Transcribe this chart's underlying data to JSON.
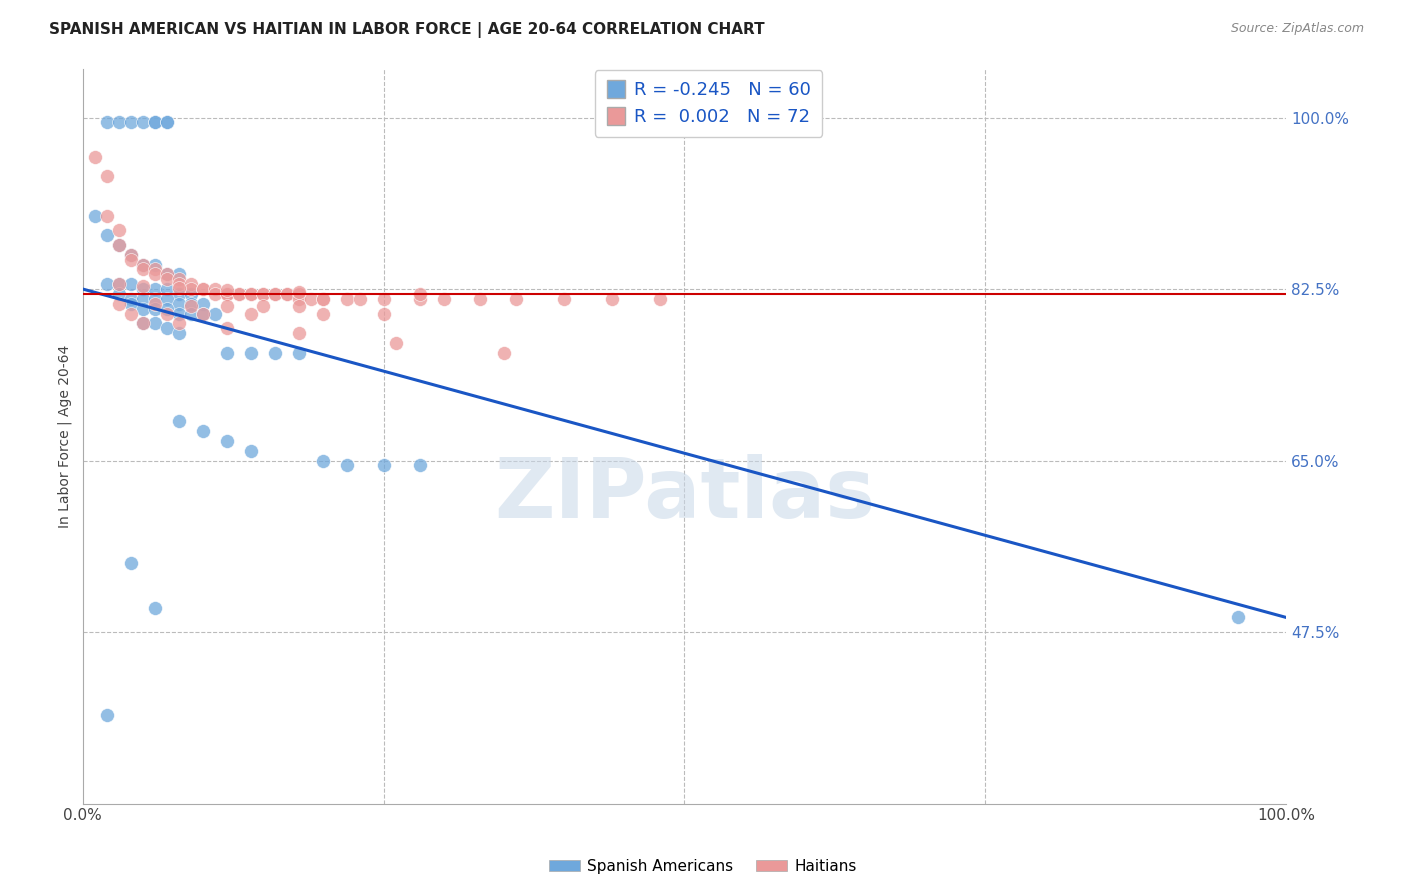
{
  "title": "SPANISH AMERICAN VS HAITIAN IN LABOR FORCE | AGE 20-64 CORRELATION CHART",
  "source": "Source: ZipAtlas.com",
  "ylabel": "In Labor Force | Age 20-64",
  "xlim": [
    0.0,
    1.0
  ],
  "ylim": [
    0.3,
    1.05
  ],
  "ytick_labels_right": [
    "47.5%",
    "65.0%",
    "82.5%",
    "100.0%"
  ],
  "ytick_positions_right": [
    0.475,
    0.65,
    0.825,
    1.0
  ],
  "xtick_labels": [
    "0.0%",
    "100.0%"
  ],
  "xtick_positions": [
    0.0,
    1.0
  ],
  "blue_R": "-0.245",
  "blue_N": "60",
  "pink_R": "0.002",
  "pink_N": "72",
  "blue_color": "#6fa8dc",
  "pink_color": "#ea9999",
  "blue_line_color": "#1a56c4",
  "pink_line_color": "#cc0000",
  "grid_color": "#bbbbbb",
  "watermark": "ZIPatlas",
  "legend_label_blue": "Spanish Americans",
  "legend_label_pink": "Haitians",
  "blue_scatter_x": [
    0.02,
    0.03,
    0.04,
    0.05,
    0.06,
    0.06,
    0.07,
    0.07,
    0.01,
    0.02,
    0.03,
    0.04,
    0.05,
    0.06,
    0.07,
    0.08,
    0.02,
    0.03,
    0.04,
    0.05,
    0.06,
    0.07,
    0.08,
    0.09,
    0.03,
    0.04,
    0.05,
    0.06,
    0.07,
    0.08,
    0.09,
    0.1,
    0.04,
    0.05,
    0.06,
    0.07,
    0.08,
    0.09,
    0.1,
    0.11,
    0.05,
    0.06,
    0.07,
    0.08,
    0.12,
    0.14,
    0.16,
    0.18,
    0.08,
    0.1,
    0.12,
    0.14,
    0.2,
    0.22,
    0.25,
    0.28,
    0.04,
    0.06,
    0.96,
    0.02
  ],
  "blue_scatter_y": [
    0.995,
    0.995,
    0.995,
    0.995,
    0.995,
    0.995,
    0.995,
    0.995,
    0.9,
    0.88,
    0.87,
    0.86,
    0.85,
    0.85,
    0.84,
    0.84,
    0.83,
    0.83,
    0.83,
    0.825,
    0.825,
    0.825,
    0.82,
    0.82,
    0.82,
    0.815,
    0.815,
    0.815,
    0.815,
    0.81,
    0.81,
    0.81,
    0.81,
    0.805,
    0.805,
    0.805,
    0.8,
    0.8,
    0.8,
    0.8,
    0.79,
    0.79,
    0.785,
    0.78,
    0.76,
    0.76,
    0.76,
    0.76,
    0.69,
    0.68,
    0.67,
    0.66,
    0.65,
    0.645,
    0.645,
    0.645,
    0.545,
    0.5,
    0.49,
    0.39
  ],
  "pink_scatter_x": [
    0.01,
    0.02,
    0.02,
    0.03,
    0.03,
    0.04,
    0.04,
    0.05,
    0.05,
    0.06,
    0.06,
    0.07,
    0.07,
    0.08,
    0.08,
    0.09,
    0.09,
    0.1,
    0.1,
    0.11,
    0.11,
    0.12,
    0.12,
    0.13,
    0.13,
    0.14,
    0.14,
    0.15,
    0.15,
    0.16,
    0.16,
    0.17,
    0.17,
    0.18,
    0.18,
    0.19,
    0.2,
    0.2,
    0.22,
    0.23,
    0.25,
    0.28,
    0.3,
    0.33,
    0.36,
    0.4,
    0.44,
    0.48,
    0.03,
    0.06,
    0.09,
    0.12,
    0.15,
    0.18,
    0.04,
    0.07,
    0.1,
    0.14,
    0.2,
    0.25,
    0.05,
    0.08,
    0.12,
    0.18,
    0.26,
    0.35,
    0.03,
    0.05,
    0.08,
    0.12,
    0.18,
    0.28
  ],
  "pink_scatter_y": [
    0.96,
    0.94,
    0.9,
    0.885,
    0.87,
    0.86,
    0.855,
    0.85,
    0.845,
    0.845,
    0.84,
    0.84,
    0.835,
    0.835,
    0.83,
    0.83,
    0.825,
    0.825,
    0.825,
    0.825,
    0.82,
    0.82,
    0.82,
    0.82,
    0.82,
    0.82,
    0.82,
    0.82,
    0.82,
    0.82,
    0.82,
    0.82,
    0.82,
    0.82,
    0.815,
    0.815,
    0.815,
    0.815,
    0.815,
    0.815,
    0.815,
    0.815,
    0.815,
    0.815,
    0.815,
    0.815,
    0.815,
    0.815,
    0.81,
    0.81,
    0.808,
    0.808,
    0.808,
    0.808,
    0.8,
    0.8,
    0.8,
    0.8,
    0.8,
    0.8,
    0.79,
    0.79,
    0.785,
    0.78,
    0.77,
    0.76,
    0.83,
    0.828,
    0.826,
    0.824,
    0.822,
    0.82
  ],
  "blue_line_x": [
    0.0,
    1.0
  ],
  "blue_line_y": [
    0.825,
    0.49
  ],
  "pink_line_y": 0.82,
  "background_color": "#ffffff"
}
